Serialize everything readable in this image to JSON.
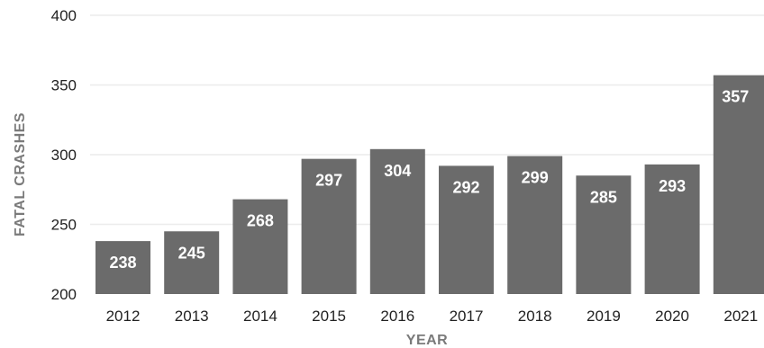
{
  "chart_data": {
    "type": "bar",
    "title": "",
    "xlabel": "YEAR",
    "ylabel": "FATAL CRASHES",
    "categories": [
      "2012",
      "2013",
      "2014",
      "2015",
      "2016",
      "2017",
      "2018",
      "2019",
      "2020",
      "2021"
    ],
    "values": [
      238,
      245,
      268,
      297,
      304,
      292,
      299,
      285,
      293,
      357
    ],
    "data_labels": [
      "238",
      "245",
      "268",
      "297",
      "304",
      "292",
      "299",
      "285",
      "293",
      "357"
    ],
    "ylim": [
      200,
      400
    ],
    "yticks": [
      200,
      250,
      300,
      350,
      400
    ],
    "ytick_labels": [
      "200",
      "250",
      "300",
      "350",
      "400"
    ],
    "grid": true,
    "legend": "none",
    "bar_color": "#6b6b6b",
    "gridline_color": "#ececec"
  }
}
